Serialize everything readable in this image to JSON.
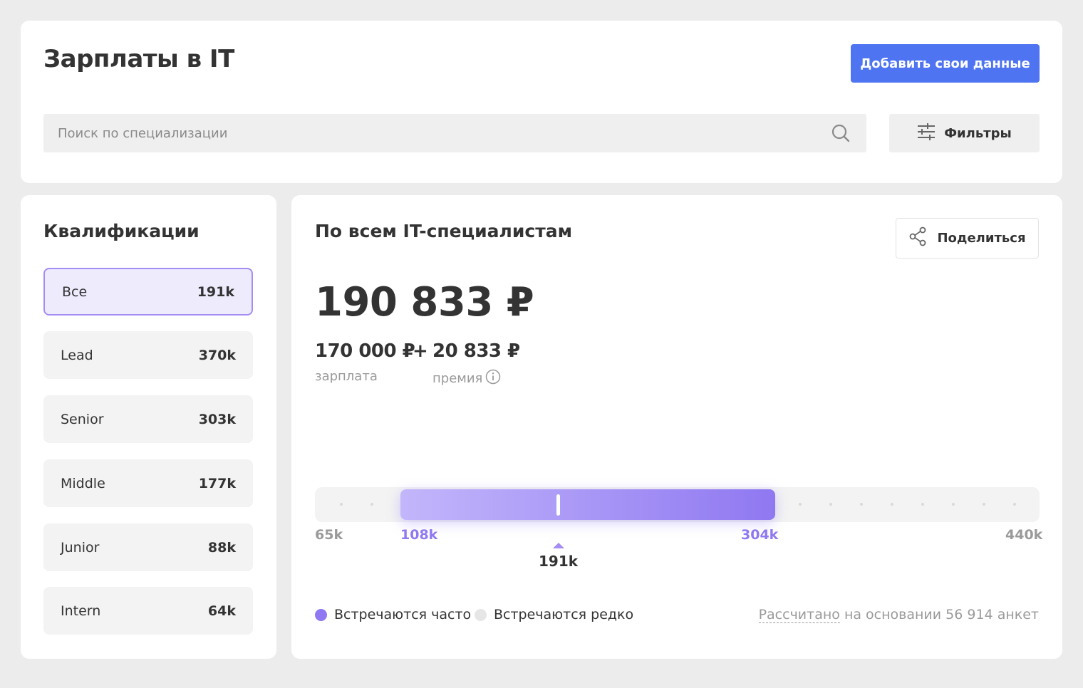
{
  "header": {
    "title": "Зарплаты в IT",
    "add_button_label": "Добавить свои данные",
    "search_placeholder": "Поиск по специализации",
    "filters_label": "Фильтры"
  },
  "qualifications": {
    "title": "Квалификации",
    "items": [
      {
        "label": "Все",
        "count": "191k",
        "active": true
      },
      {
        "label": "Lead",
        "count": "370k"
      },
      {
        "label": "Senior",
        "count": "303k"
      },
      {
        "label": "Middle",
        "count": "177k"
      },
      {
        "label": "Junior",
        "count": "88k"
      },
      {
        "label": "Intern",
        "count": "64k"
      }
    ]
  },
  "summary": {
    "title": "По всем IT-специалистам",
    "share_label": "Поделиться",
    "total": "190 833 ₽",
    "salary": "170 000 ₽",
    "plus": "+",
    "bonus": "20 833 ₽",
    "salary_caption": "зарплата",
    "bonus_caption": "премия"
  },
  "distribution": {
    "min_label": "65k",
    "p_low_label": "108k",
    "p_high_label": "304k",
    "max_label": "440k",
    "median_label": "191k",
    "min": 65,
    "p_low": 108,
    "p_high": 304,
    "max": 440,
    "median": 191
  },
  "legend": {
    "often_label": "Встречаются часто",
    "rare_label": "Встречаются редко",
    "often_color": "#8f78f1",
    "rare_color": "#e6e6e6",
    "note_link": "Рассчитано",
    "note_rest": " на основании 56 914 анкет"
  },
  "colors": {
    "accent": "#4f74f2",
    "purple": "#8f78f1"
  }
}
